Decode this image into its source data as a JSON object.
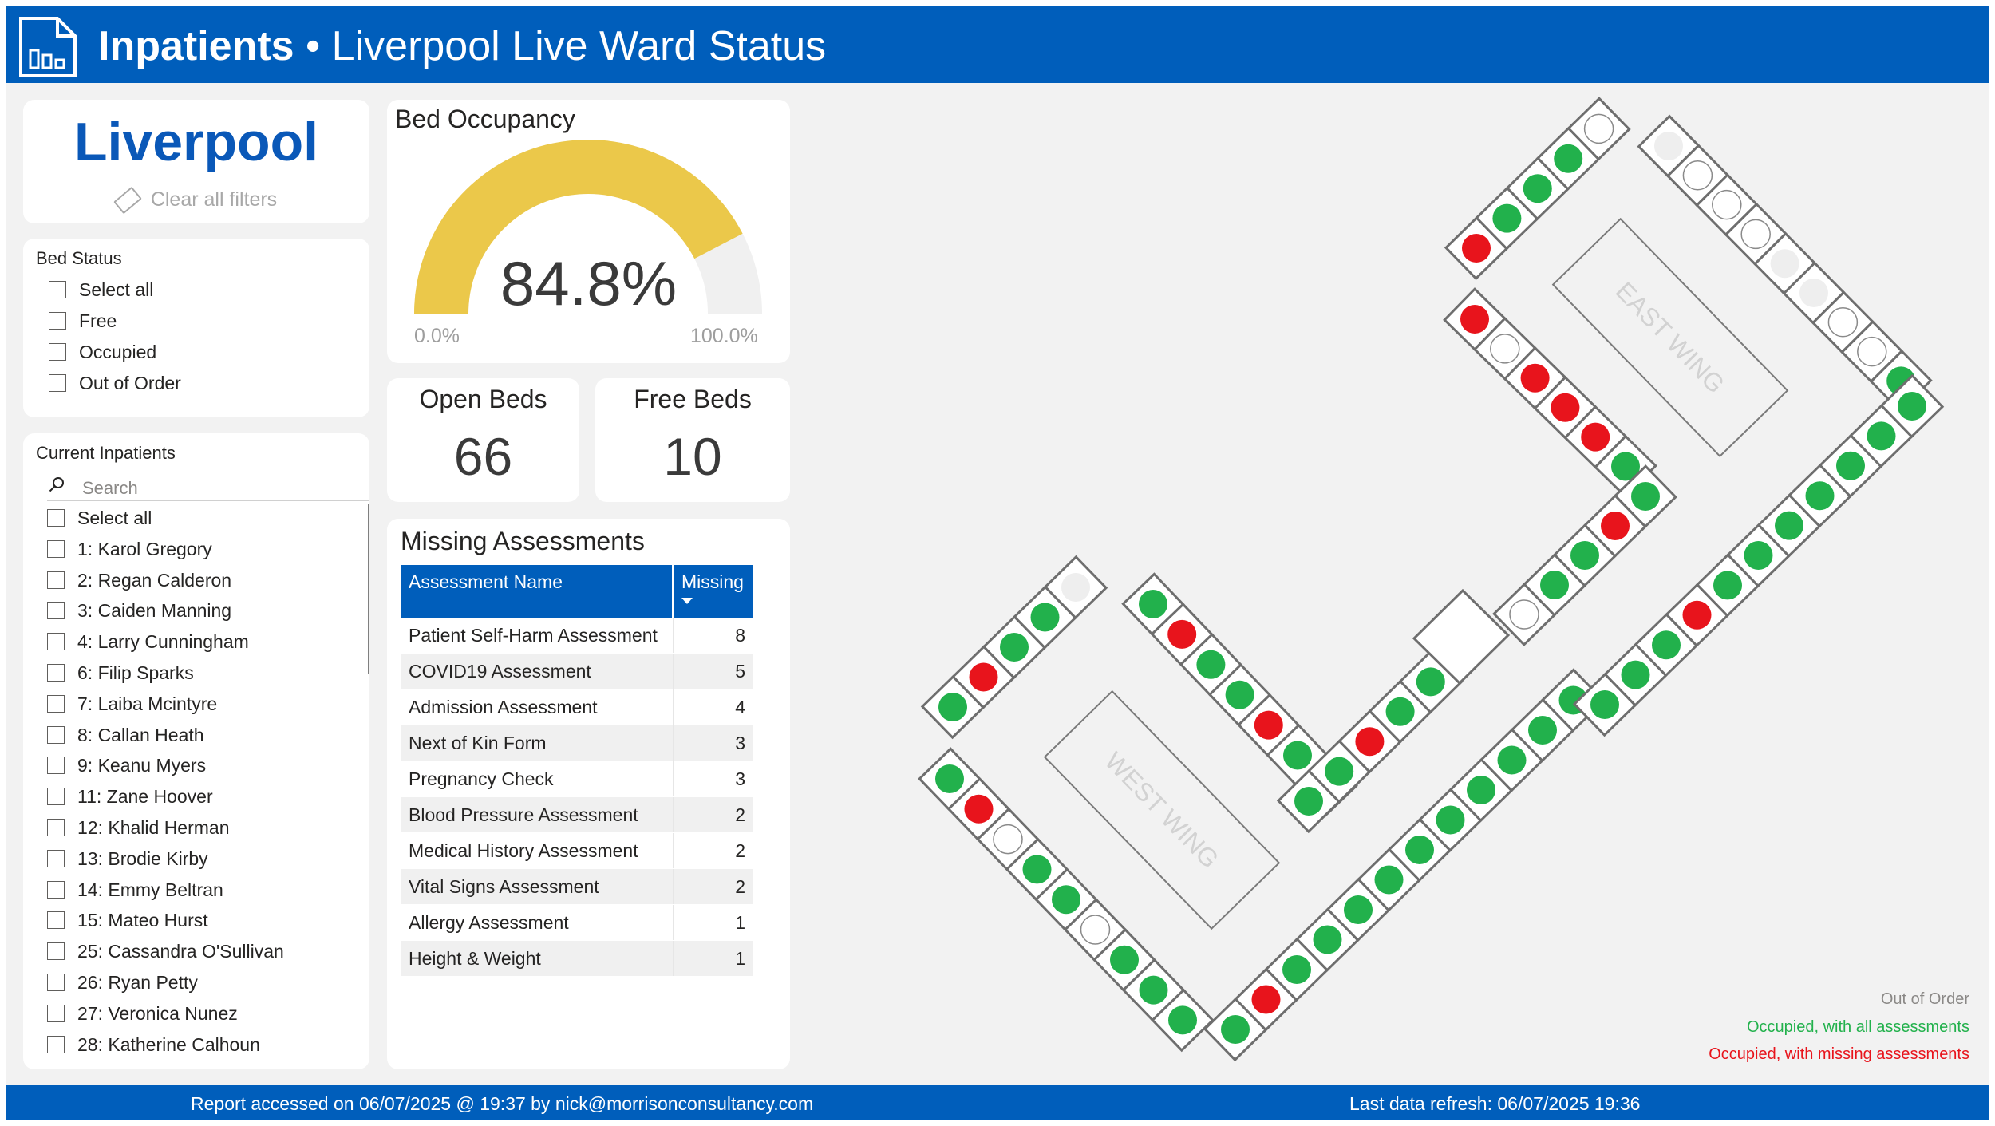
{
  "header": {
    "title_bold": "Inpatients",
    "title_rest": " • Liverpool Live Ward Status"
  },
  "location": {
    "name": "Liverpool",
    "clear_filters": "Clear all filters"
  },
  "bed_status": {
    "title": "Bed Status",
    "options": [
      "Select all",
      "Free",
      "Occupied",
      "Out of Order"
    ]
  },
  "patients": {
    "title": "Current Inpatients",
    "search_placeholder": "Search",
    "items": [
      "Select all",
      "1: Karol Gregory",
      "2: Regan Calderon",
      "3: Caiden Manning",
      "4: Larry Cunningham",
      "6: Filip Sparks",
      "7: Laiba Mcintyre",
      "8: Callan Heath",
      "9: Keanu Myers",
      "11: Zane Hoover",
      "12: Khalid Herman",
      "13: Brodie Kirby",
      "14: Emmy Beltran",
      "15: Mateo Hurst",
      "25: Cassandra O'Sullivan",
      "26: Ryan Petty",
      "27: Veronica Nunez",
      "28: Katherine Calhoun"
    ]
  },
  "occupancy": {
    "title": "Bed Occupancy",
    "value_label": "84.8%",
    "fraction": 0.848,
    "min_label": "0.0%",
    "max_label": "100.0%",
    "fill_color": "#ebc84a",
    "track_color": "#f0f0f0"
  },
  "kpis": {
    "open_beds_label": "Open Beds",
    "open_beds_value": "66",
    "free_beds_label": "Free Beds",
    "free_beds_value": "10"
  },
  "missing": {
    "title": "Missing Assessments",
    "col_name": "Assessment Name",
    "col_missing": "Missing",
    "rows": [
      {
        "name": "Patient Self-Harm Assessment",
        "missing": "8"
      },
      {
        "name": "COVID19 Assessment",
        "missing": "5"
      },
      {
        "name": "Admission Assessment",
        "missing": "4"
      },
      {
        "name": "Next of Kin Form",
        "missing": "3"
      },
      {
        "name": "Pregnancy Check",
        "missing": "3"
      },
      {
        "name": "Blood Pressure Assessment",
        "missing": "2"
      },
      {
        "name": "Medical History Assessment",
        "missing": "2"
      },
      {
        "name": "Vital Signs Assessment",
        "missing": "2"
      },
      {
        "name": "Allergy Assessment",
        "missing": "1"
      },
      {
        "name": "Height & Weight",
        "missing": "1"
      }
    ]
  },
  "ward_map": {
    "east_label": "EAST WING",
    "west_label": "WEST WING",
    "colors": {
      "occupied_ok": "#22b14c",
      "occupied_missing": "#e8141c",
      "out_of_order": "#eeeeee",
      "free": "#ffffff"
    },
    "west_top_left": [
      "ok",
      "missing",
      "ok",
      "ok",
      "ooo"
    ],
    "west_left": [
      "ok",
      "missing",
      "free",
      "ok",
      "ok",
      "free",
      "ok",
      "ok",
      "ok"
    ],
    "west_inner": [
      "ok",
      "missing",
      "ok",
      "ok",
      "missing",
      "ok",
      "ok"
    ],
    "west_bottom": [
      "ok",
      "missing",
      "ok",
      "ok",
      "ok",
      "ok",
      "ok",
      "ok",
      "ok",
      "ok",
      "ok",
      "ok"
    ],
    "connector": [
      "ok",
      "ok",
      "missing",
      "ok",
      "ok"
    ],
    "east_upper_left": [
      "missing",
      "free",
      "missing",
      "missing",
      "missing",
      "ok"
    ],
    "east_mid": [
      "free",
      "ok",
      "ok",
      "missing",
      "ok"
    ],
    "east_top_left": [
      "missing",
      "ok",
      "ok",
      "ok",
      "free"
    ],
    "east_right": [
      "ooo",
      "free",
      "free",
      "free",
      "ooo",
      "ooo",
      "free",
      "free",
      "ok"
    ],
    "east_bottom": [
      "ok",
      "ok",
      "ok",
      "missing",
      "ok",
      "ok",
      "ok",
      "ok",
      "ok",
      "ok",
      "ok"
    ]
  },
  "legend": {
    "out_of_order": "Out of Order",
    "ok": "Occupied, with all assessments",
    "missing": "Occupied, with missing assessments"
  },
  "footer": {
    "accessed": "Report accessed on 06/07/2025 @ 19:37 by nick@morrisonconsultancy.com",
    "refresh": "Last data refresh: 06/07/2025 19:36"
  }
}
